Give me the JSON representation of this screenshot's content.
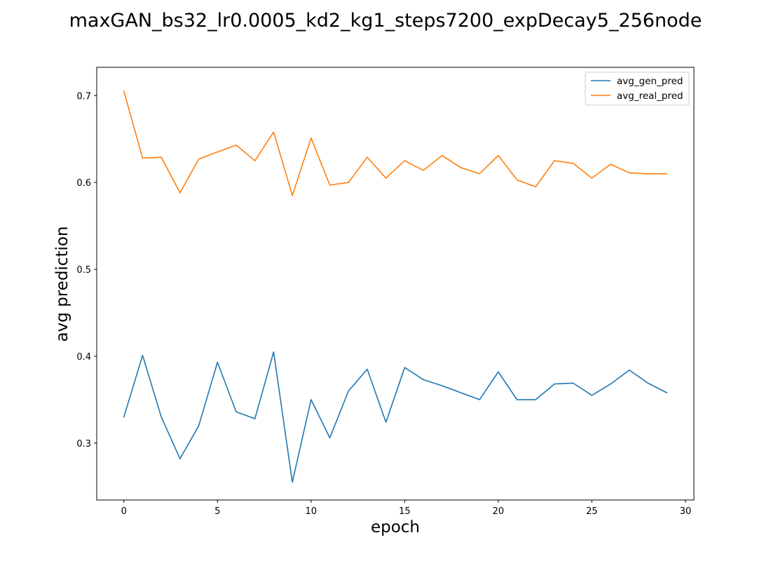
{
  "chart_data": {
    "type": "line",
    "title": "maxGAN_bs32_lr0.0005_kd2_kg1_steps7200_expDecay5_256node",
    "xlabel": "epoch",
    "ylabel": "avg prediction",
    "xlim": [
      -1.45,
      30.45
    ],
    "ylim": [
      0.2345,
      0.7325
    ],
    "xticks": [
      0,
      5,
      10,
      15,
      20,
      25,
      30
    ],
    "xtick_labels": [
      "0",
      "5",
      "10",
      "15",
      "20",
      "25",
      "30"
    ],
    "yticks": [
      0.3,
      0.4,
      0.5,
      0.6,
      0.7
    ],
    "ytick_labels": [
      "0.3",
      "0.4",
      "0.5",
      "0.6",
      "0.7"
    ],
    "grid": false,
    "legend_position": "top-right",
    "x": [
      0,
      1,
      2,
      3,
      4,
      5,
      6,
      7,
      8,
      9,
      10,
      11,
      12,
      13,
      14,
      15,
      16,
      17,
      18,
      19,
      20,
      21,
      22,
      23,
      24,
      25,
      26,
      27,
      28,
      29
    ],
    "series": [
      {
        "name": "avg_gen_pred",
        "color": "#1f77b4",
        "values": [
          0.33,
          0.401,
          0.33,
          0.282,
          0.32,
          0.393,
          0.336,
          0.328,
          0.405,
          0.255,
          0.35,
          0.306,
          0.36,
          0.385,
          0.324,
          0.387,
          0.373,
          0.366,
          0.358,
          0.35,
          0.382,
          0.35,
          0.35,
          0.368,
          0.369,
          0.355,
          0.368,
          0.384,
          0.369,
          0.358
        ]
      },
      {
        "name": "avg_real_pred",
        "color": "#ff7f0e",
        "values": [
          0.705,
          0.628,
          0.629,
          0.588,
          0.627,
          0.635,
          0.643,
          0.625,
          0.658,
          0.585,
          0.651,
          0.597,
          0.6,
          0.629,
          0.605,
          0.625,
          0.614,
          0.631,
          0.617,
          0.61,
          0.631,
          0.603,
          0.595,
          0.625,
          0.622,
          0.605,
          0.621,
          0.611,
          0.61,
          0.61
        ]
      }
    ]
  }
}
